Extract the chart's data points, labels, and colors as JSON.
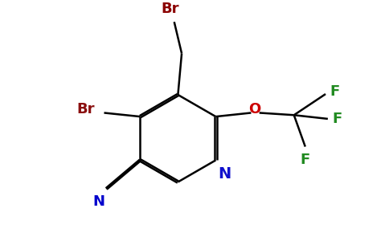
{
  "background_color": "#ffffff",
  "bond_color": "#000000",
  "atom_colors": {
    "Br_top": "#8b0000",
    "Br_side": "#8b1010",
    "N_ring": "#1010cc",
    "N_cn": "#0000cc",
    "O": "#cc0000",
    "F": "#228B22"
  },
  "figsize": [
    4.84,
    3.0
  ],
  "dpi": 100,
  "lw": 1.8,
  "fs": 13
}
